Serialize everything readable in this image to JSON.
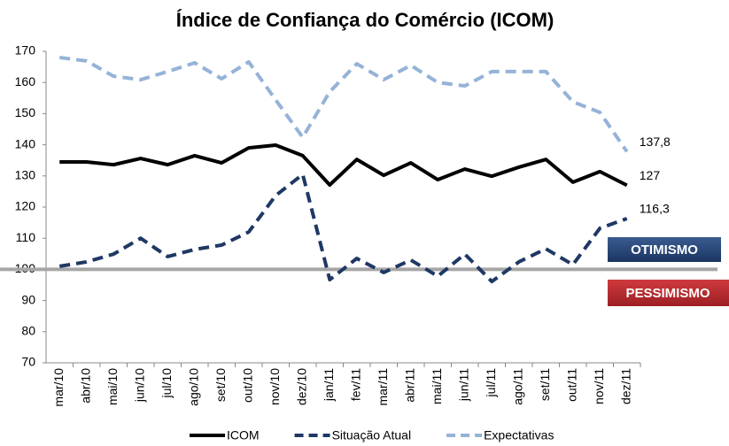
{
  "chart_data": {
    "type": "line",
    "title": "Índice de Confiança do Comércio (ICOM)",
    "categories": [
      "mar/10",
      "abr/10",
      "mai/10",
      "jun/10",
      "jul/10",
      "ago/10",
      "set/10",
      "out/10",
      "nov/10",
      "dez/10",
      "jan/11",
      "fev/11",
      "mar/11",
      "abr/11",
      "mai/11",
      "jun/11",
      "jul/11",
      "ago/11",
      "set/11",
      "out/11",
      "nov/11",
      "dez/11"
    ],
    "series": [
      {
        "name": "ICOM",
        "color": "#000000",
        "dash": false,
        "values": [
          134.5,
          134.5,
          133.6,
          135.6,
          133.6,
          136.5,
          134.2,
          139,
          139.9,
          136.5,
          127.1,
          135.3,
          130.2,
          134.2,
          128.8,
          132.2,
          129.9,
          132.8,
          135.3,
          128,
          131.4,
          127
        ],
        "value_labels": [
          null,
          null,
          null,
          null,
          null,
          null,
          null,
          null,
          null,
          null,
          null,
          null,
          null,
          null,
          null,
          null,
          null,
          null,
          null,
          null,
          null,
          "127"
        ]
      },
      {
        "name": "Situação Atual",
        "color": "#1f3864",
        "dash": true,
        "values": [
          101,
          102.4,
          104.9,
          110,
          104.1,
          106.4,
          107.8,
          112,
          123.7,
          130.5,
          96.7,
          103.5,
          99,
          103,
          97.8,
          104.9,
          96.1,
          102.4,
          106.6,
          101.5,
          113.2,
          116.3
        ],
        "value_labels": [
          null,
          null,
          null,
          null,
          null,
          null,
          null,
          null,
          null,
          null,
          null,
          null,
          null,
          null,
          null,
          null,
          null,
          null,
          null,
          null,
          null,
          "116,3"
        ]
      },
      {
        "name": "Expectativas",
        "color": "#95b3d7",
        "dash": true,
        "values": [
          168,
          166.9,
          162,
          160.9,
          163.5,
          166.3,
          161.2,
          166.6,
          154.4,
          142.4,
          157,
          166,
          160.9,
          165.5,
          160,
          158.9,
          163.5,
          163.5,
          163.5,
          153.8,
          150.4,
          137.8
        ],
        "value_labels": [
          null,
          null,
          null,
          null,
          null,
          null,
          null,
          null,
          null,
          null,
          null,
          null,
          null,
          null,
          null,
          null,
          null,
          null,
          null,
          null,
          null,
          "137,8"
        ]
      }
    ],
    "ylim": [
      70,
      170
    ],
    "yticks": [
      70,
      80,
      90,
      100,
      110,
      120,
      130,
      140,
      150,
      160,
      170
    ],
    "reference_line": 100,
    "annotations": [
      "OTIMISMO",
      "PESSIMISMO"
    ],
    "legend": "bottom"
  }
}
